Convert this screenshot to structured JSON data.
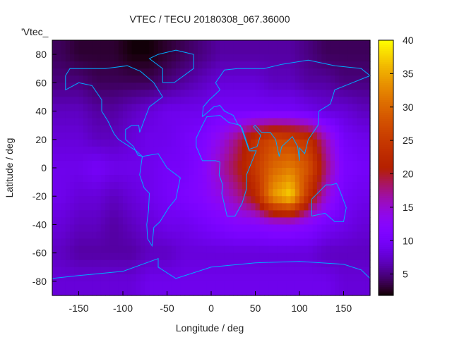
{
  "chart_data": {
    "type": "heatmap",
    "title": "VTEC / TECU 20180308_067.36000",
    "xlabel": "Longitude / deg",
    "ylabel": "Latitude / deg",
    "key_label": "'Vtec_",
    "xlim": [
      -180,
      180
    ],
    "ylim": [
      -90,
      90
    ],
    "xticks": [
      -150,
      -100,
      -50,
      0,
      50,
      100,
      150
    ],
    "yticks": [
      80,
      60,
      40,
      20,
      0,
      -20,
      -40,
      -60,
      -80
    ],
    "colorbar": {
      "range": [
        1.8,
        40
      ],
      "ticks": [
        5,
        10,
        15,
        20,
        25,
        30,
        35,
        40
      ]
    },
    "grid_lon_centers": [
      -170,
      -150,
      -130,
      -110,
      -90,
      -70,
      -50,
      -30,
      -10,
      10,
      30,
      50,
      70,
      90,
      110,
      130,
      150,
      170
    ],
    "grid_lat_centers": [
      80,
      60,
      40,
      20,
      0,
      -20,
      -40,
      -60,
      -80
    ],
    "values": [
      [
        4,
        3,
        3,
        3,
        2,
        2,
        3,
        4,
        5,
        6,
        6,
        6,
        6,
        6,
        5,
        4,
        4,
        4
      ],
      [
        5,
        5,
        4,
        4,
        4,
        4,
        5,
        6,
        7,
        8,
        8,
        8,
        7,
        7,
        6,
        6,
        5,
        5
      ],
      [
        7,
        7,
        6,
        6,
        7,
        8,
        9,
        9,
        9,
        10,
        10,
        10,
        10,
        10,
        9,
        8,
        8,
        7
      ],
      [
        8,
        8,
        7,
        7,
        8,
        9,
        9,
        10,
        11,
        14,
        18,
        24,
        27,
        26,
        24,
        16,
        10,
        9
      ],
      [
        9,
        9,
        10,
        9,
        9,
        9,
        10,
        10,
        12,
        16,
        20,
        25,
        30,
        32,
        28,
        18,
        11,
        10
      ],
      [
        9,
        8,
        8,
        7,
        8,
        9,
        10,
        11,
        12,
        14,
        17,
        22,
        34,
        38,
        24,
        15,
        10,
        9
      ],
      [
        8,
        7,
        7,
        6,
        7,
        8,
        9,
        9,
        10,
        11,
        12,
        12,
        13,
        13,
        12,
        10,
        9,
        8
      ],
      [
        7,
        6,
        6,
        6,
        6,
        7,
        7,
        8,
        8,
        8,
        8,
        8,
        8,
        8,
        8,
        7,
        7,
        7
      ],
      [
        8,
        8,
        8,
        8,
        8,
        9,
        9,
        9,
        9,
        9,
        9,
        9,
        9,
        9,
        9,
        9,
        8,
        8
      ]
    ],
    "coastline_color": "#00aaff"
  }
}
